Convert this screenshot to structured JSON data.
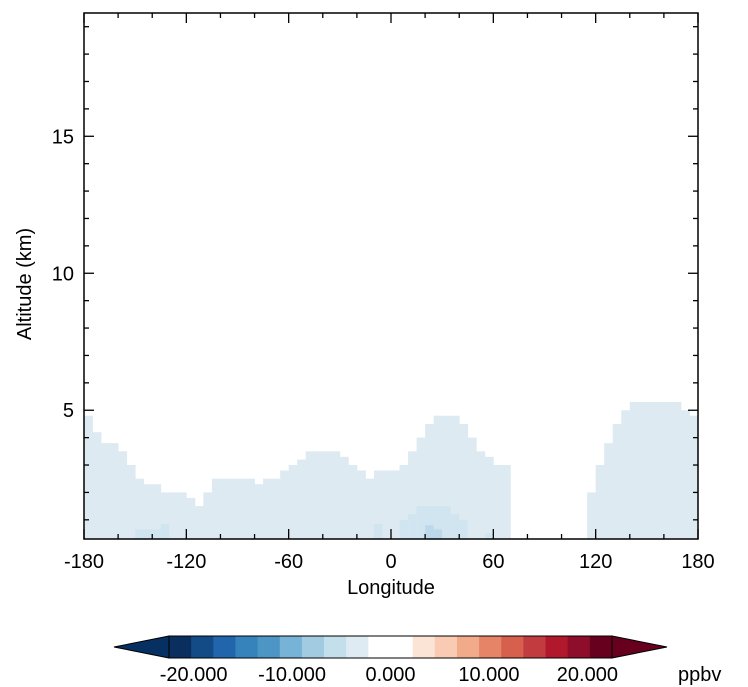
{
  "chart_data": {
    "type": "heatmap",
    "title": "",
    "xlabel": "Longitude",
    "ylabel": "Altitude (km)",
    "xlim": [
      -180,
      180
    ],
    "ylim": [
      0.3,
      19.5
    ],
    "x_ticks": [
      "-180",
      "-120",
      "-60",
      "0",
      "60",
      "120",
      "180"
    ],
    "y_ticks": [
      "5",
      "10",
      "15"
    ],
    "grid": false,
    "x_step": 5,
    "y_step": 0.28,
    "light_fill": {
      "value": -1.5,
      "color": "#deeaf2",
      "top_altitude_by_longitude": [
        [
          -180,
          4.8
        ],
        [
          -175,
          4.2
        ],
        [
          -170,
          3.8
        ],
        [
          -165,
          3.8
        ],
        [
          -160,
          3.5
        ],
        [
          -155,
          3.0
        ],
        [
          -150,
          2.5
        ],
        [
          -145,
          2.3
        ],
        [
          -140,
          2.3
        ],
        [
          -135,
          2.0
        ],
        [
          -130,
          2.0
        ],
        [
          -125,
          2.0
        ],
        [
          -120,
          1.8
        ],
        [
          -115,
          1.5
        ],
        [
          -110,
          2.0
        ],
        [
          -105,
          2.5
        ],
        [
          -100,
          2.5
        ],
        [
          -95,
          2.5
        ],
        [
          -90,
          2.5
        ],
        [
          -85,
          2.5
        ],
        [
          -80,
          2.3
        ],
        [
          -75,
          2.5
        ],
        [
          -70,
          2.5
        ],
        [
          -65,
          2.8
        ],
        [
          -60,
          3.0
        ],
        [
          -55,
          3.2
        ],
        [
          -50,
          3.5
        ],
        [
          -45,
          3.5
        ],
        [
          -40,
          3.5
        ],
        [
          -35,
          3.5
        ],
        [
          -30,
          3.3
        ],
        [
          -25,
          3.0
        ],
        [
          -20,
          2.8
        ],
        [
          -15,
          2.5
        ],
        [
          -10,
          2.8
        ],
        [
          -5,
          2.8
        ],
        [
          0,
          2.8
        ],
        [
          5,
          3.0
        ],
        [
          10,
          3.5
        ],
        [
          15,
          4.0
        ],
        [
          20,
          4.5
        ],
        [
          25,
          4.8
        ],
        [
          30,
          4.8
        ],
        [
          35,
          4.8
        ],
        [
          40,
          4.5
        ],
        [
          45,
          4.0
        ],
        [
          50,
          3.5
        ],
        [
          55,
          3.3
        ],
        [
          60,
          3.0
        ],
        [
          65,
          3.0
        ],
        [
          70,
          0.3
        ],
        [
          75,
          0.3
        ],
        [
          80,
          0.3
        ],
        [
          85,
          0.3
        ],
        [
          90,
          0.3
        ],
        [
          95,
          0.3
        ],
        [
          100,
          0.3
        ],
        [
          105,
          0.3
        ],
        [
          110,
          0.3
        ],
        [
          115,
          2.0
        ],
        [
          120,
          3.0
        ],
        [
          125,
          3.8
        ],
        [
          130,
          4.5
        ],
        [
          135,
          5.0
        ],
        [
          140,
          5.3
        ],
        [
          145,
          5.3
        ],
        [
          150,
          5.3
        ],
        [
          155,
          5.3
        ],
        [
          160,
          5.3
        ],
        [
          165,
          5.3
        ],
        [
          170,
          5.0
        ],
        [
          175,
          4.8
        ]
      ],
      "bottom_gaps": [
        {
          "x": [
            -5,
            0
          ],
          "y_top": 0.3
        }
      ]
    },
    "cells": [
      {
        "lon": [
          -150,
          -135
        ],
        "alt": [
          0.3,
          0.65
        ],
        "value": -3.0,
        "color": "#d1e5f0"
      },
      {
        "lon": [
          -135,
          -130
        ],
        "alt": [
          0.3,
          0.85
        ],
        "value": -3.0,
        "color": "#d1e5f0"
      },
      {
        "lon": [
          -10,
          -5
        ],
        "alt": [
          0.3,
          0.85
        ],
        "value": -3.0,
        "color": "#d1e5f0"
      },
      {
        "lon": [
          5,
          10
        ],
        "alt": [
          0.3,
          1.0
        ],
        "value": -3.0,
        "color": "#d1e5f0"
      },
      {
        "lon": [
          10,
          15
        ],
        "alt": [
          0.3,
          1.2
        ],
        "value": -3.0,
        "color": "#d1e5f0"
      },
      {
        "lon": [
          15,
          20
        ],
        "alt": [
          0.3,
          1.5
        ],
        "value": -3.0,
        "color": "#d1e5f0"
      },
      {
        "lon": [
          20,
          35
        ],
        "alt": [
          0.3,
          1.5
        ],
        "value": -3.0,
        "color": "#d1e5f0"
      },
      {
        "lon": [
          35,
          40
        ],
        "alt": [
          0.3,
          1.2
        ],
        "value": -3.0,
        "color": "#d1e5f0"
      },
      {
        "lon": [
          40,
          45
        ],
        "alt": [
          0.3,
          1.0
        ],
        "value": -3.0,
        "color": "#d1e5f0"
      },
      {
        "lon": [
          20,
          25
        ],
        "alt": [
          0.3,
          0.8
        ],
        "value": -4.5,
        "color": "#bcd8ea"
      },
      {
        "lon": [
          25,
          30
        ],
        "alt": [
          0.3,
          0.65
        ],
        "value": -4.5,
        "color": "#bcd8ea"
      },
      {
        "lon": [
          55,
          60
        ],
        "alt": [
          0.3,
          0.5
        ],
        "value": -3.0,
        "color": "#d1e5f0"
      }
    ],
    "colorbar": {
      "unit": "ppbv",
      "tick_labels": [
        "-20.000",
        "-10.000",
        "0.000",
        "10.000",
        "20.000"
      ],
      "tick_values": [
        -20,
        -10,
        0,
        10,
        20
      ],
      "range": [
        -22.5,
        22.5
      ],
      "levels_step": 2.5,
      "under_color": "#053061",
      "over_color": "#67001f",
      "colors": [
        "#0a2f5e",
        "#134b87",
        "#2166ac",
        "#3683bb",
        "#4d95c4",
        "#77b3d6",
        "#a2cbe2",
        "#c4dfec",
        "#deebf3",
        "#ffffff",
        "#ffffff",
        "#fbe4d6",
        "#f8cbb2",
        "#f2ab8a",
        "#e68468",
        "#d6604d",
        "#c13b3f",
        "#b2182b",
        "#8e0d2b",
        "#67001f"
      ]
    }
  }
}
